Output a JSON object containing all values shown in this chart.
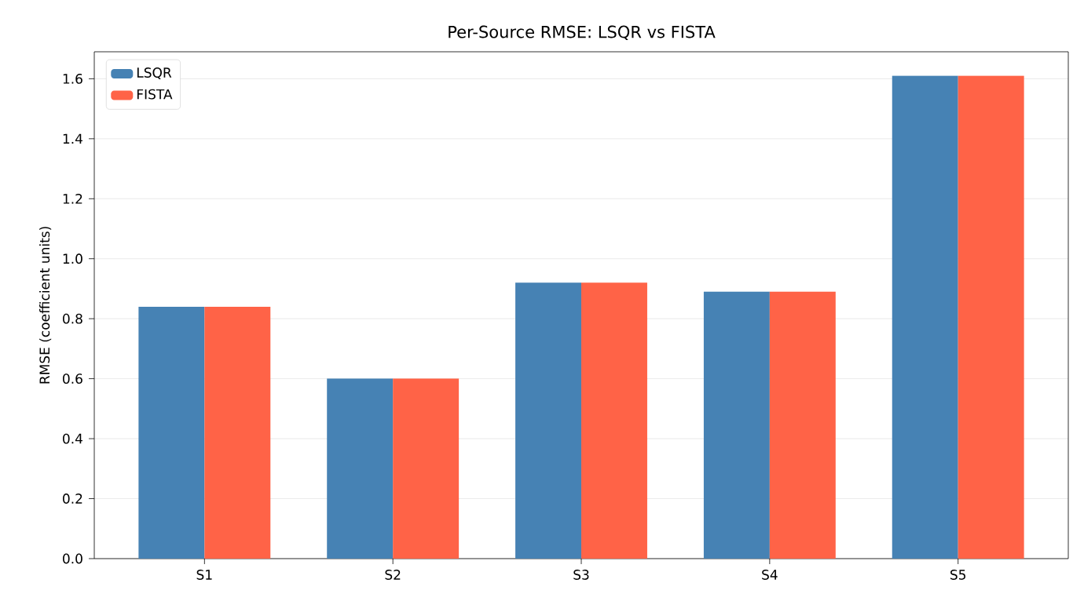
{
  "chart_data": {
    "type": "bar",
    "title": "Per-Source RMSE: LSQR vs FISTA",
    "ylabel": "RMSE (coefficient units)",
    "categories": [
      "S1",
      "S2",
      "S3",
      "S4",
      "S5"
    ],
    "series": [
      {
        "name": "LSQR",
        "color": "#4682b4",
        "values": [
          0.84,
          0.6,
          0.92,
          0.89,
          1.61
        ]
      },
      {
        "name": "FISTA",
        "color": "#ff6347",
        "values": [
          0.84,
          0.6,
          0.92,
          0.89,
          1.61
        ]
      }
    ],
    "ylim": [
      0,
      1.69
    ],
    "yticks": [
      {
        "value": 0,
        "label": "0.0"
      },
      0.2,
      0.4,
      0.6,
      0.8,
      {
        "value": 1,
        "label": "1.0"
      },
      1.2,
      1.4,
      1.6
    ],
    "grid": "y",
    "legend": "top left"
  }
}
